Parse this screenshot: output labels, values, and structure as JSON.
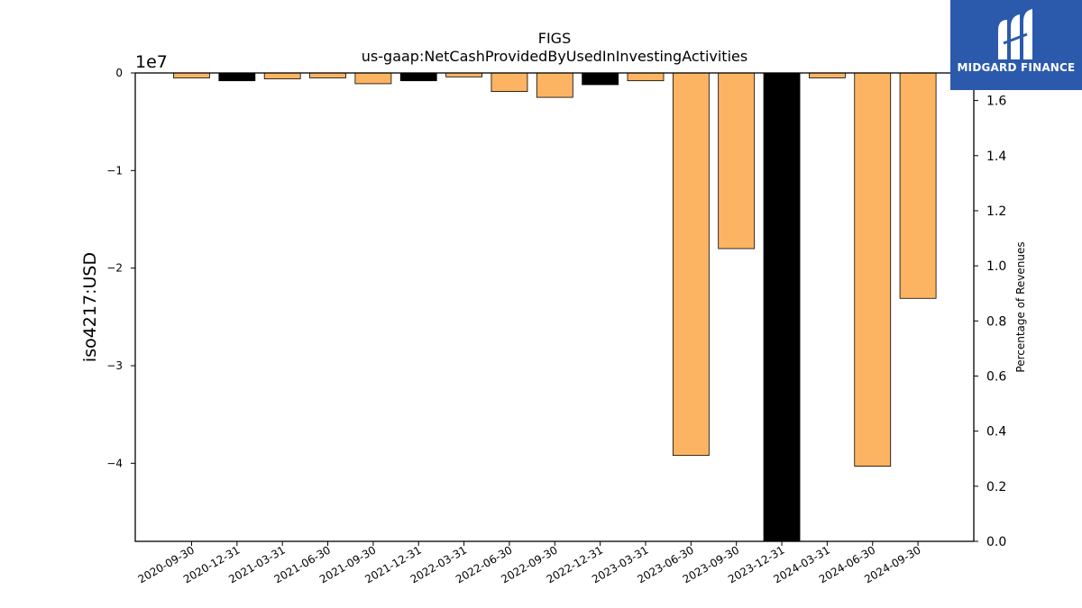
{
  "chart_data": {
    "type": "bar",
    "title": "FIGS",
    "subtitle": "us-gaap:NetCashProvidedByUsedInInvestingActivities",
    "ylabel": "iso4217:USD",
    "y_offset_label": "1e7",
    "y2label": "Percentage of Revenues",
    "ylim": [
      -4.8,
      0
    ],
    "y_ticks": [
      0,
      -1,
      -2,
      -3,
      -4
    ],
    "y_tick_labels": [
      "0",
      "−1",
      "−2",
      "−3",
      "−4"
    ],
    "y2lim": [
      0,
      1.7
    ],
    "y2_ticks": [
      0.0,
      0.2,
      0.4,
      0.6,
      0.8,
      1.0,
      1.2,
      1.4,
      1.6
    ],
    "y2_tick_labels": [
      "0.0",
      "0.2",
      "0.4",
      "0.6",
      "0.8",
      "1.0",
      "1.2",
      "1.4",
      "1.6"
    ],
    "categories": [
      "2020-09-30",
      "2020-12-31",
      "2021-03-31",
      "2021-06-30",
      "2021-09-30",
      "2021-12-31",
      "2022-03-31",
      "2022-06-30",
      "2022-09-30",
      "2022-12-31",
      "2023-03-31",
      "2023-06-30",
      "2023-09-30",
      "2023-12-31",
      "2024-03-31",
      "2024-06-30",
      "2024-09-30"
    ],
    "values": [
      -0.05,
      -0.08,
      -0.06,
      -0.05,
      -0.11,
      -0.08,
      -0.04,
      -0.19,
      -0.25,
      -0.12,
      -0.08,
      -3.92,
      -1.8,
      -5.0,
      -0.05,
      -4.03,
      -2.31
    ],
    "bar_colors": [
      "#fdb462",
      "#000000",
      "#fdb462",
      "#fdb462",
      "#fdb462",
      "#000000",
      "#fdb462",
      "#fdb462",
      "#fdb462",
      "#000000",
      "#fdb462",
      "#fdb462",
      "#fdb462",
      "#000000",
      "#fdb462",
      "#fdb462",
      "#fdb462"
    ],
    "grid": false,
    "legend": "none"
  },
  "logo": {
    "text": "MIDGARD FINANCE",
    "bg": "#2b5aad"
  }
}
